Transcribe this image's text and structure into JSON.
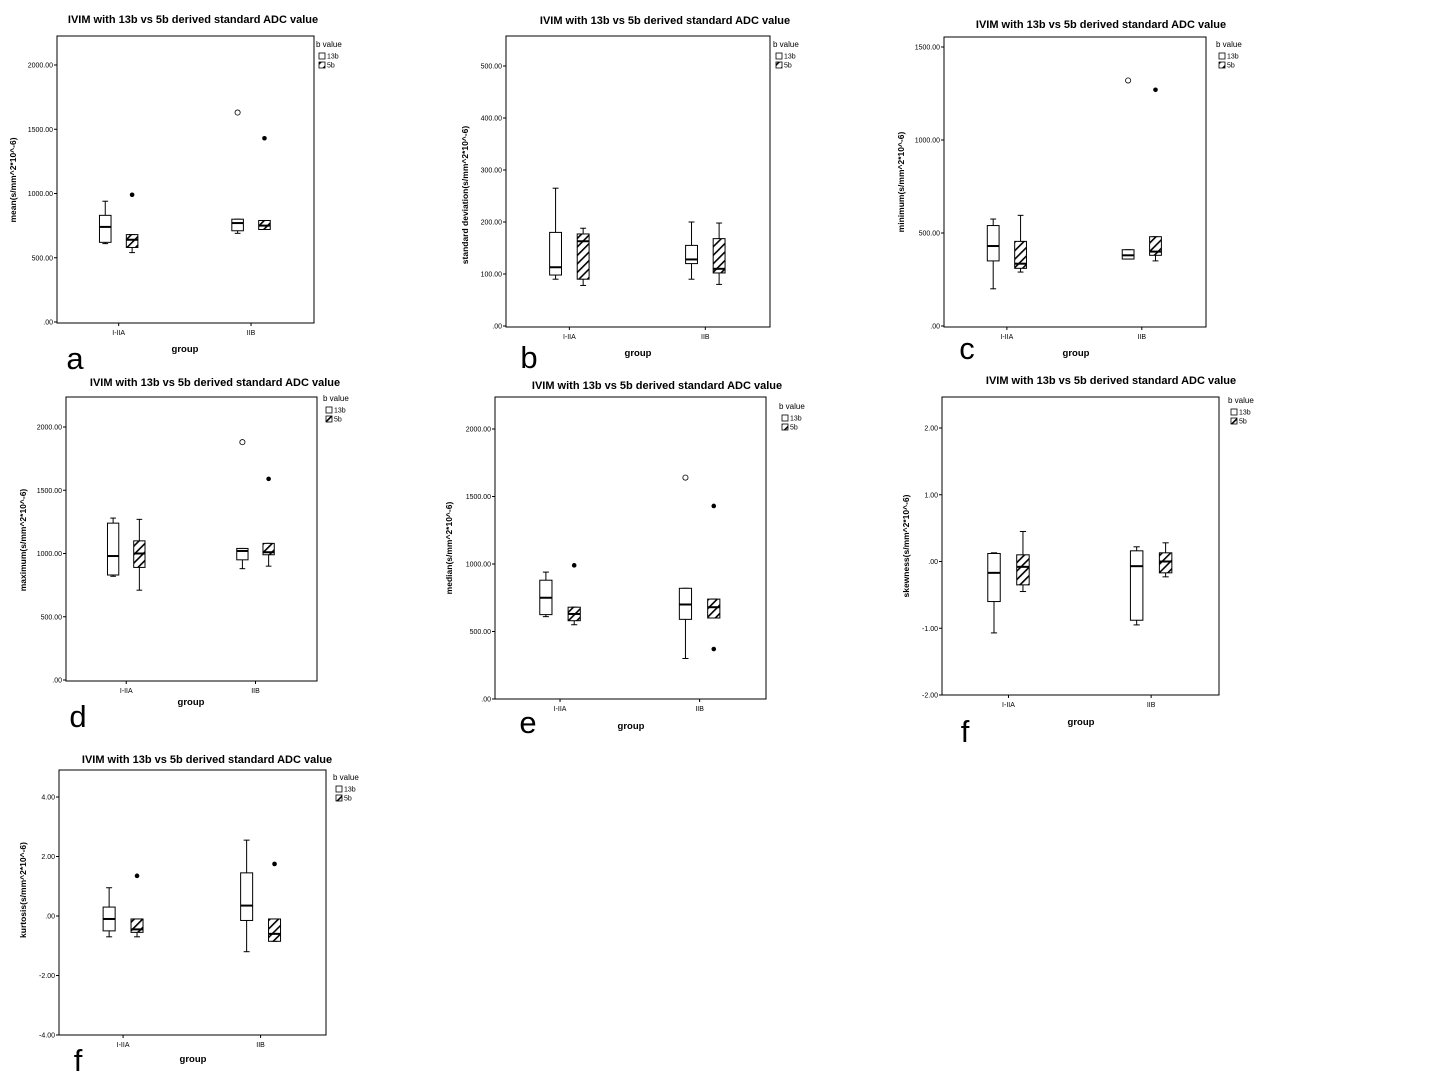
{
  "chart_data": [
    {
      "type": "boxplot",
      "panel_letter": "a",
      "title": "IVIM with 13b vs 5b derived standard ADC value",
      "xlabel": "group",
      "ylabel": "mean(s/mm^2*10^-6)",
      "categories": [
        "I-IIA",
        "IIB"
      ],
      "yticks": [
        0,
        500,
        1000,
        1500,
        2000
      ],
      "ytick_labels": [
        ".00",
        "500.00",
        "1000.00",
        "1500.00",
        "2000.00"
      ],
      "ylim": [
        0,
        2000
      ],
      "legend_title": "b value",
      "series": [
        {
          "name": "13b",
          "pattern": "open",
          "boxes": [
            {
              "min": 610,
              "q1": 620,
              "median": 740,
              "q3": 830,
              "max": 940,
              "outliers": []
            },
            {
              "min": 690,
              "q1": 710,
              "median": 770,
              "q3": 800,
              "max": 800,
              "outliers": [
                1630
              ]
            }
          ]
        },
        {
          "name": "5b",
          "pattern": "hatched",
          "boxes": [
            {
              "min": 540,
              "q1": 580,
              "median": 640,
              "q3": 680,
              "max": 680,
              "outliers": [
                990
              ]
            },
            {
              "min": 720,
              "q1": 720,
              "median": 750,
              "q3": 790,
              "max": 790,
              "outliers": [
                1430
              ]
            }
          ]
        }
      ]
    },
    {
      "type": "boxplot",
      "panel_letter": "b",
      "title": "IVIM with 13b vs 5b derived standard ADC value",
      "xlabel": "group",
      "ylabel": "standard deviation(s/mm^2*10^-6)",
      "categories": [
        "I-IIA",
        "IIB"
      ],
      "yticks": [
        0,
        100,
        200,
        300,
        400,
        500
      ],
      "ytick_labels": [
        ".00",
        "100.00",
        "200.00",
        "300.00",
        "400.00",
        "500.00"
      ],
      "ylim": [
        0,
        550
      ],
      "legend_title": "b value",
      "series": [
        {
          "name": "13b",
          "pattern": "open",
          "boxes": [
            {
              "min": 90,
              "q1": 98,
              "median": 113,
              "q3": 180,
              "max": 265,
              "outliers": []
            },
            {
              "min": 90,
              "q1": 120,
              "median": 128,
              "q3": 155,
              "max": 200,
              "outliers": []
            }
          ]
        },
        {
          "name": "5b",
          "pattern": "hatched",
          "boxes": [
            {
              "min": 78,
              "q1": 90,
              "median": 163,
              "q3": 177,
              "max": 188,
              "outliers": []
            },
            {
              "min": 80,
              "q1": 102,
              "median": 110,
              "q3": 168,
              "max": 198,
              "outliers": []
            }
          ]
        }
      ]
    },
    {
      "type": "boxplot",
      "panel_letter": "c",
      "title": "IVIM with 13b vs 5b derived standard ADC value",
      "xlabel": "group",
      "ylabel": "minimum(s/mm^2*10^-6)",
      "categories": [
        "I-IIA",
        "IIB"
      ],
      "yticks": [
        0,
        500,
        1000,
        1500
      ],
      "ytick_labels": [
        ".00",
        "500.00",
        "1000.00",
        "1500.00"
      ],
      "ylim": [
        0,
        1500
      ],
      "legend_title": "b value",
      "series": [
        {
          "name": "13b",
          "pattern": "open",
          "boxes": [
            {
              "min": 200,
              "q1": 350,
              "median": 430,
              "q3": 540,
              "max": 575,
              "outliers": []
            },
            {
              "min": 360,
              "q1": 360,
              "median": 380,
              "q3": 410,
              "max": 410,
              "outliers": [
                1320
              ]
            }
          ]
        },
        {
          "name": "5b",
          "pattern": "hatched",
          "boxes": [
            {
              "min": 290,
              "q1": 310,
              "median": 335,
              "q3": 455,
              "max": 595,
              "outliers": []
            },
            {
              "min": 350,
              "q1": 380,
              "median": 400,
              "q3": 480,
              "max": 480,
              "outliers": [
                1270
              ]
            }
          ]
        }
      ]
    },
    {
      "type": "boxplot",
      "panel_letter": "d",
      "title": "IVIM with 13b vs 5b derived standard ADC value",
      "xlabel": "group",
      "ylabel": "maximum(s/mm^2*10^-6)",
      "categories": [
        "I-IIA",
        "IIB"
      ],
      "yticks": [
        0,
        500,
        1000,
        1500,
        2000
      ],
      "ytick_labels": [
        ".00",
        "500.00",
        "1000.00",
        "1500.00",
        "2000.00"
      ],
      "ylim": [
        0,
        2200
      ],
      "legend_title": "b value",
      "series": [
        {
          "name": "13b",
          "pattern": "open",
          "boxes": [
            {
              "min": 820,
              "q1": 830,
              "median": 980,
              "q3": 1240,
              "max": 1280,
              "outliers": []
            },
            {
              "min": 880,
              "q1": 950,
              "median": 1020,
              "q3": 1040,
              "max": 1040,
              "outliers": [
                1880
              ]
            }
          ]
        },
        {
          "name": "5b",
          "pattern": "hatched",
          "boxes": [
            {
              "min": 710,
              "q1": 890,
              "median": 1000,
              "q3": 1100,
              "max": 1270,
              "outliers": []
            },
            {
              "min": 900,
              "q1": 990,
              "median": 1010,
              "q3": 1080,
              "max": 1080,
              "outliers": [
                1590
              ]
            }
          ]
        }
      ]
    },
    {
      "type": "boxplot",
      "panel_letter": "e",
      "title": "IVIM with 13b vs 5b derived standard ADC value",
      "xlabel": "group",
      "ylabel": "median(s/mm^2*10^-6)",
      "categories": [
        "I-IIA",
        "IIB"
      ],
      "yticks": [
        0,
        500,
        1000,
        1500,
        2000
      ],
      "ytick_labels": [
        ".00",
        "500.00",
        "1000.00",
        "1500.00",
        "2000.00"
      ],
      "ylim": [
        0,
        2200
      ],
      "legend_title": "b value",
      "series": [
        {
          "name": "13b",
          "pattern": "open",
          "boxes": [
            {
              "min": 610,
              "q1": 625,
              "median": 750,
              "q3": 880,
              "max": 940,
              "outliers": []
            },
            {
              "min": 300,
              "q1": 590,
              "median": 700,
              "q3": 820,
              "max": 820,
              "outliers": [
                1640
              ]
            }
          ]
        },
        {
          "name": "5b",
          "pattern": "hatched",
          "boxes": [
            {
              "min": 550,
              "q1": 580,
              "median": 630,
              "q3": 680,
              "max": 680,
              "outliers": [
                990
              ]
            },
            {
              "min": 600,
              "q1": 600,
              "median": 680,
              "q3": 740,
              "max": 740,
              "outliers": [
                1430,
                370
              ]
            }
          ]
        }
      ]
    },
    {
      "type": "boxplot",
      "panel_letter": "f",
      "title": "IVIM with 13b vs 5b derived standard ADC value",
      "xlabel": "group",
      "ylabel": "skewness(s/mm^2*10^-6)",
      "categories": [
        "I-IIA",
        "IIB"
      ],
      "yticks": [
        -2,
        -1,
        0,
        1,
        2
      ],
      "ytick_labels": [
        "-2.00",
        "-1.00",
        ".00",
        "1.00",
        "2.00"
      ],
      "ylim": [
        -2,
        2.5
      ],
      "legend_title": "b value",
      "series": [
        {
          "name": "13b",
          "pattern": "open",
          "boxes": [
            {
              "min": -1.07,
              "q1": -0.6,
              "median": -0.17,
              "q3": 0.12,
              "max": 0.13,
              "outliers": []
            },
            {
              "min": -0.95,
              "q1": -0.88,
              "median": -0.07,
              "q3": 0.16,
              "max": 0.22,
              "outliers": []
            }
          ]
        },
        {
          "name": "5b",
          "pattern": "hatched",
          "boxes": [
            {
              "min": -0.45,
              "q1": -0.35,
              "median": -0.08,
              "q3": 0.1,
              "max": 0.45,
              "outliers": []
            },
            {
              "min": -0.23,
              "q1": -0.17,
              "median": 0.0,
              "q3": 0.13,
              "max": 0.28,
              "outliers": []
            }
          ]
        }
      ]
    },
    {
      "type": "boxplot",
      "panel_letter": "f",
      "title": "IVIM with 13b vs 5b derived standard ADC value",
      "xlabel": "group",
      "ylabel": "kurtosis(s/mm^2*10^-6)",
      "categories": [
        "I-IIA",
        "IIB"
      ],
      "yticks": [
        -4,
        -2,
        0,
        2,
        4
      ],
      "ytick_labels": [
        "-4.00",
        "-2.00",
        ".00",
        "2.00",
        "4.00"
      ],
      "ylim": [
        -4,
        5
      ],
      "legend_title": "b value",
      "series": [
        {
          "name": "13b",
          "pattern": "open",
          "boxes": [
            {
              "min": -0.7,
              "q1": -0.5,
              "median": -0.1,
              "q3": 0.3,
              "max": 0.95,
              "outliers": []
            },
            {
              "min": -1.2,
              "q1": -0.15,
              "median": 0.35,
              "q3": 1.45,
              "max": 2.55,
              "outliers": []
            }
          ]
        },
        {
          "name": "5b",
          "pattern": "hatched",
          "boxes": [
            {
              "min": -0.7,
              "q1": -0.55,
              "median": -0.45,
              "q3": -0.1,
              "max": -0.1,
              "outliers": [
                1.35
              ]
            },
            {
              "min": -0.85,
              "q1": -0.85,
              "median": -0.6,
              "q3": -0.1,
              "max": -0.1,
              "outliers": [
                1.75
              ]
            }
          ]
        }
      ]
    }
  ]
}
